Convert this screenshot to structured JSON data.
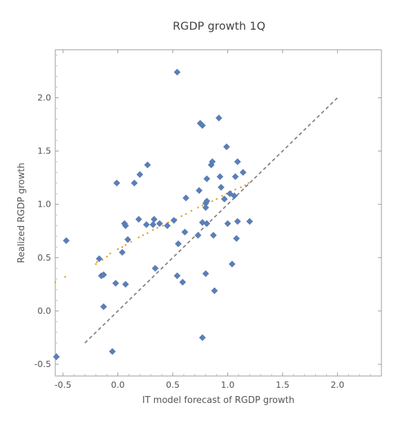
{
  "chart_data": {
    "type": "scatter",
    "title": "RGDP growth 1Q",
    "xlabel": "IT model forecast of RGDP growth",
    "ylabel": "Realized RGDP growth",
    "xlim": [
      -0.57,
      2.4
    ],
    "ylim": [
      -0.61,
      2.45
    ],
    "x_ticks": [
      -0.5,
      0.0,
      0.5,
      1.0,
      1.5,
      2.0
    ],
    "x_tick_labels": [
      "-0.5",
      "0.0",
      "0.5",
      "1.0",
      "1.5",
      "2.0"
    ],
    "y_ticks": [
      -0.5,
      0.0,
      0.5,
      1.0,
      1.5,
      2.0
    ],
    "y_tick_labels": [
      "-0.5",
      "0.0",
      "0.5",
      "1.0",
      "1.5",
      "2.0"
    ],
    "grid": false,
    "frame": true,
    "series": [
      {
        "marker": "diamond",
        "color": "#5b7fb8",
        "points": [
          [
            -0.56,
            -0.43
          ],
          [
            -0.47,
            0.66
          ],
          [
            -0.17,
            0.49
          ],
          [
            -0.15,
            0.33
          ],
          [
            -0.13,
            0.34
          ],
          [
            -0.13,
            0.04
          ],
          [
            -0.05,
            -0.38
          ],
          [
            -0.02,
            0.26
          ],
          [
            -0.01,
            1.2
          ],
          [
            0.04,
            0.55
          ],
          [
            0.06,
            0.82
          ],
          [
            0.07,
            0.8
          ],
          [
            0.07,
            0.25
          ],
          [
            0.09,
            0.67
          ],
          [
            0.15,
            1.2
          ],
          [
            0.19,
            0.86
          ],
          [
            0.2,
            1.28
          ],
          [
            0.26,
            0.81
          ],
          [
            0.27,
            1.37
          ],
          [
            0.32,
            0.81
          ],
          [
            0.33,
            0.86
          ],
          [
            0.34,
            0.4
          ],
          [
            0.38,
            0.82
          ],
          [
            0.45,
            0.8
          ],
          [
            0.51,
            0.85
          ],
          [
            0.54,
            0.33
          ],
          [
            0.54,
            2.24
          ],
          [
            0.55,
            0.63
          ],
          [
            0.59,
            0.27
          ],
          [
            0.61,
            0.74
          ],
          [
            0.62,
            1.06
          ],
          [
            0.73,
            0.71
          ],
          [
            0.74,
            1.13
          ],
          [
            0.75,
            1.76
          ],
          [
            0.77,
            1.74
          ],
          [
            0.77,
            0.83
          ],
          [
            0.77,
            -0.25
          ],
          [
            0.8,
            0.35
          ],
          [
            0.8,
            1.01
          ],
          [
            0.8,
            0.97
          ],
          [
            0.81,
            1.24
          ],
          [
            0.81,
            1.03
          ],
          [
            0.81,
            0.82
          ],
          [
            0.85,
            1.37
          ],
          [
            0.86,
            1.4
          ],
          [
            0.87,
            0.71
          ],
          [
            0.88,
            0.19
          ],
          [
            0.92,
            1.81
          ],
          [
            0.93,
            1.26
          ],
          [
            0.94,
            1.16
          ],
          [
            0.97,
            1.05
          ],
          [
            0.99,
            1.54
          ],
          [
            1.0,
            0.82
          ],
          [
            1.02,
            1.1
          ],
          [
            1.04,
            0.44
          ],
          [
            1.06,
            1.08
          ],
          [
            1.07,
            1.26
          ],
          [
            1.08,
            0.68
          ],
          [
            1.09,
            0.84
          ],
          [
            1.09,
            1.4
          ],
          [
            1.14,
            1.3
          ],
          [
            1.2,
            0.84
          ]
        ]
      },
      {
        "marker": "dot",
        "color": "#e2a32e",
        "points": [
          [
            -0.57,
            0.27
          ],
          [
            -0.48,
            0.32
          ],
          [
            -0.2,
            0.44
          ],
          [
            -0.19,
            0.46
          ],
          [
            -0.14,
            0.48
          ],
          [
            -0.1,
            0.51
          ],
          [
            -0.07,
            0.54
          ],
          [
            0.0,
            0.58
          ],
          [
            0.04,
            0.6
          ],
          [
            0.07,
            0.62
          ],
          [
            0.12,
            0.65
          ],
          [
            0.19,
            0.69
          ],
          [
            0.23,
            0.71
          ],
          [
            0.27,
            0.73
          ],
          [
            0.32,
            0.76
          ],
          [
            0.36,
            0.78
          ],
          [
            0.41,
            0.8
          ],
          [
            0.46,
            0.83
          ],
          [
            0.53,
            0.86
          ],
          [
            0.58,
            0.89
          ],
          [
            0.62,
            0.91
          ],
          [
            0.67,
            0.94
          ],
          [
            0.73,
            0.97
          ],
          [
            0.77,
            0.99
          ],
          [
            0.82,
            1.01
          ],
          [
            0.86,
            1.03
          ],
          [
            0.9,
            1.05
          ],
          [
            0.95,
            1.08
          ],
          [
            0.99,
            1.1
          ],
          [
            1.03,
            1.12
          ],
          [
            1.07,
            1.14
          ],
          [
            1.12,
            1.16
          ],
          [
            1.16,
            1.18
          ],
          [
            1.19,
            1.2
          ]
        ]
      }
    ],
    "reference_line": {
      "style": "dashed",
      "color": "#808080",
      "from": [
        -0.3,
        -0.3
      ],
      "to": [
        2.0,
        2.0
      ]
    }
  }
}
